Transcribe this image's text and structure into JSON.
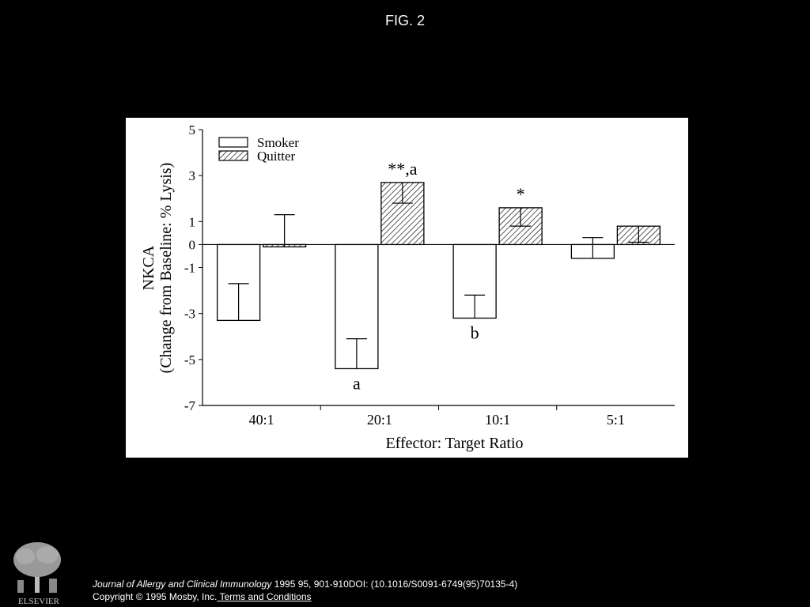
{
  "header": {
    "title": "FIG. 2"
  },
  "chart_data": {
    "type": "bar",
    "title": "",
    "xlabel": "Effector: Target Ratio",
    "ylabel_line1": "NKCA",
    "ylabel_line2": "(Change from Baseline: % Lysis)",
    "ylim": [
      -7,
      5
    ],
    "yticks": [
      "5",
      "3",
      "1",
      "0",
      "-1",
      "-3",
      "-5",
      "-7"
    ],
    "ytick_values": [
      5,
      3,
      1,
      0,
      -1,
      -3,
      -5,
      -7
    ],
    "categories": [
      "40:1",
      "20:1",
      "10:1",
      "5:1"
    ],
    "series": [
      {
        "name": "Smoker",
        "fill": "white",
        "values": [
          -3.3,
          -5.4,
          -3.2,
          -0.6
        ],
        "errors": [
          1.6,
          1.3,
          1.0,
          0.9
        ],
        "annotations": [
          "",
          "a",
          "b",
          ""
        ]
      },
      {
        "name": "Quitter",
        "fill": "hatched",
        "values": [
          -0.1,
          2.7,
          1.6,
          0.8
        ],
        "errors": [
          1.4,
          0.9,
          0.8,
          0.7
        ],
        "annotations": [
          "",
          "**,a",
          "*",
          ""
        ]
      }
    ],
    "legend_position": "top-left",
    "grid": false
  },
  "footer": {
    "publisher": "ELSEVIER",
    "journal": "Journal of Allergy and Clinical Immunology",
    "citation_rest": " 1995 95, 901-910DOI: (10.1016/S0091-6749(95)70135-4)",
    "copyright": "Copyright © 1995 Mosby, Inc.",
    "terms_link": " Terms and Conditions"
  }
}
